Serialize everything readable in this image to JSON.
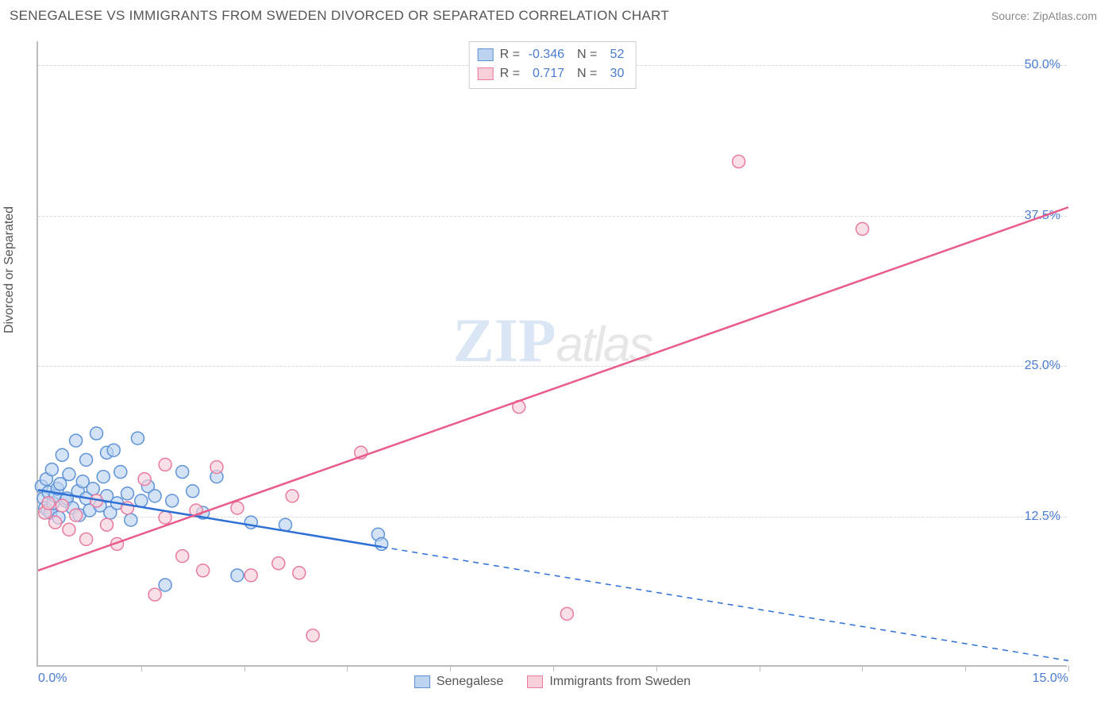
{
  "title": "SENEGALESE VS IMMIGRANTS FROM SWEDEN DIVORCED OR SEPARATED CORRELATION CHART",
  "source": "Source: ZipAtlas.com",
  "ylabel": "Divorced or Separated",
  "watermark_zip": "ZIP",
  "watermark_tlas": "atlas",
  "chart": {
    "type": "scatter",
    "xlim": [
      0,
      15
    ],
    "ylim": [
      0,
      52
    ],
    "yticks": [
      {
        "v": 12.5,
        "label": "12.5%"
      },
      {
        "v": 25.0,
        "label": "25.0%"
      },
      {
        "v": 37.5,
        "label": "37.5%"
      },
      {
        "v": 50.0,
        "label": "50.0%"
      }
    ],
    "xtick_positions": [
      1.5,
      3.0,
      4.5,
      6.0,
      7.5,
      9.0,
      10.5,
      12.0,
      13.5,
      15.0
    ],
    "xaxis_labels": [
      {
        "v": 0,
        "label": "0.0%"
      },
      {
        "v": 15,
        "label": "15.0%"
      }
    ],
    "grid_color": "#d8d8d8",
    "axis_color": "#bdbdbd",
    "tick_label_color": "#4a7bd0",
    "background_color": "#ffffff",
    "marker_radius": 8,
    "marker_stroke_width": 1.5,
    "line_width": 2.5,
    "series": [
      {
        "name": "Senegalese",
        "fill": "#bcd4f0",
        "stroke": "#5f93d8",
        "line_color": "#2e6fd6",
        "r_value": "-0.346",
        "n_value": "52",
        "trend": {
          "x1": 0,
          "y1": 14.7,
          "x2": 15,
          "y2": 0.5,
          "solid_until_x": 5.0
        },
        "points": [
          [
            0.05,
            15.0
          ],
          [
            0.08,
            14.0
          ],
          [
            0.1,
            13.2
          ],
          [
            0.12,
            15.6
          ],
          [
            0.14,
            13.0
          ],
          [
            0.15,
            14.5
          ],
          [
            0.18,
            12.8
          ],
          [
            0.2,
            16.4
          ],
          [
            0.22,
            13.6
          ],
          [
            0.25,
            14.2
          ],
          [
            0.28,
            14.8
          ],
          [
            0.3,
            12.4
          ],
          [
            0.32,
            15.2
          ],
          [
            0.35,
            17.6
          ],
          [
            0.4,
            13.8
          ],
          [
            0.42,
            14.0
          ],
          [
            0.45,
            16.0
          ],
          [
            0.5,
            13.2
          ],
          [
            0.55,
            18.8
          ],
          [
            0.58,
            14.6
          ],
          [
            0.6,
            12.6
          ],
          [
            0.65,
            15.4
          ],
          [
            0.7,
            14.0
          ],
          [
            0.7,
            17.2
          ],
          [
            0.75,
            13.0
          ],
          [
            0.8,
            14.8
          ],
          [
            0.85,
            19.4
          ],
          [
            0.9,
            13.4
          ],
          [
            0.95,
            15.8
          ],
          [
            1.0,
            17.8
          ],
          [
            1.0,
            14.2
          ],
          [
            1.05,
            12.8
          ],
          [
            1.1,
            18.0
          ],
          [
            1.15,
            13.6
          ],
          [
            1.2,
            16.2
          ],
          [
            1.3,
            14.4
          ],
          [
            1.35,
            12.2
          ],
          [
            1.45,
            19.0
          ],
          [
            1.5,
            13.8
          ],
          [
            1.6,
            15.0
          ],
          [
            1.7,
            14.2
          ],
          [
            1.85,
            6.8
          ],
          [
            1.95,
            13.8
          ],
          [
            2.1,
            16.2
          ],
          [
            2.25,
            14.6
          ],
          [
            2.4,
            12.8
          ],
          [
            2.6,
            15.8
          ],
          [
            2.9,
            7.6
          ],
          [
            3.1,
            12.0
          ],
          [
            3.6,
            11.8
          ],
          [
            4.95,
            11.0
          ],
          [
            5.0,
            10.2
          ]
        ]
      },
      {
        "name": "Immigrants from Sweden",
        "fill": "#f6cfd9",
        "stroke": "#e97aa0",
        "line_color": "#e85b8a",
        "r_value": "0.717",
        "n_value": "30",
        "trend": {
          "x1": 0,
          "y1": 8.0,
          "x2": 15,
          "y2": 38.2,
          "solid_until_x": 15
        },
        "points": [
          [
            0.1,
            12.8
          ],
          [
            0.15,
            13.6
          ],
          [
            0.25,
            12.0
          ],
          [
            0.35,
            13.4
          ],
          [
            0.45,
            11.4
          ],
          [
            0.55,
            12.6
          ],
          [
            0.7,
            10.6
          ],
          [
            0.85,
            13.8
          ],
          [
            1.0,
            11.8
          ],
          [
            1.15,
            10.2
          ],
          [
            1.3,
            13.2
          ],
          [
            1.55,
            15.6
          ],
          [
            1.7,
            6.0
          ],
          [
            1.85,
            12.4
          ],
          [
            1.85,
            16.8
          ],
          [
            2.1,
            9.2
          ],
          [
            2.3,
            13.0
          ],
          [
            2.4,
            8.0
          ],
          [
            2.6,
            16.6
          ],
          [
            2.9,
            13.2
          ],
          [
            3.1,
            7.6
          ],
          [
            3.5,
            8.6
          ],
          [
            3.7,
            14.2
          ],
          [
            3.8,
            7.8
          ],
          [
            4.0,
            2.6
          ],
          [
            4.7,
            17.8
          ],
          [
            7.0,
            21.6
          ],
          [
            7.7,
            4.4
          ],
          [
            10.2,
            42.0
          ],
          [
            12.0,
            36.4
          ]
        ]
      }
    ]
  },
  "legend": {
    "series1_label": "Senegalese",
    "series2_label": "Immigrants from Sweden"
  },
  "stats_labels": {
    "r": "R =",
    "n": "N ="
  }
}
